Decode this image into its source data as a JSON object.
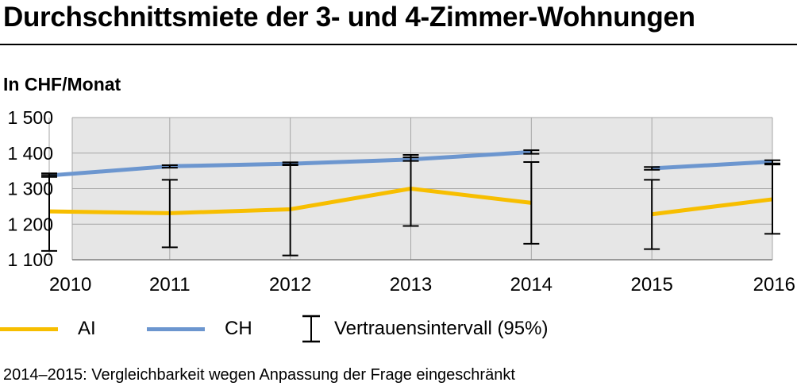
{
  "title": "Durchschnittsmiete der 3- und 4-Zimmer-Wohnungen",
  "unit_label": "In CHF/Monat",
  "footnote": "2014–2015: Vergleichbarkeit wegen Anpassung der Frage eingeschränkt",
  "legend": {
    "ai": "AI",
    "ch": "CH",
    "ci": "Vertrauensintervall (95%)"
  },
  "colors": {
    "ai": "#f7be00",
    "ch": "#6c96cf",
    "plot_bg": "#e6e6e6",
    "grid": "#a6a6a6",
    "error_bar": "#000000"
  },
  "chart_data": {
    "type": "line",
    "categories": [
      "2010",
      "2011",
      "2012",
      "2013",
      "2014",
      "2015",
      "2016"
    ],
    "y_tick_labels": [
      "1 100",
      "1 200",
      "1 300",
      "1 400",
      "1 500"
    ],
    "y_ticks": [
      1100,
      1200,
      1300,
      1400,
      1500
    ],
    "ylim": [
      1100,
      1500
    ],
    "grid": true,
    "legend_position": "bottom",
    "series": [
      {
        "key": "ai",
        "name": "AI",
        "values": [
          1236,
          1231,
          1242,
          1300,
          1260,
          1228,
          1270
        ],
        "ci_low": [
          1125,
          1135,
          1112,
          1195,
          1145,
          1130,
          1173
        ],
        "ci_high": [
          1338,
          1325,
          1368,
          1395,
          1375,
          1325,
          1368
        ],
        "segments": [
          [
            0,
            4
          ],
          [
            5,
            6
          ]
        ]
      },
      {
        "key": "ch",
        "name": "CH",
        "values": [
          1337,
          1363,
          1370,
          1382,
          1403,
          1357,
          1376
        ],
        "ci_low": [
          1333,
          1359,
          1366,
          1378,
          1398,
          1353,
          1371
        ],
        "ci_high": [
          1343,
          1366,
          1374,
          1388,
          1408,
          1361,
          1380
        ],
        "segments": [
          [
            0,
            4
          ],
          [
            5,
            6
          ]
        ]
      }
    ]
  }
}
